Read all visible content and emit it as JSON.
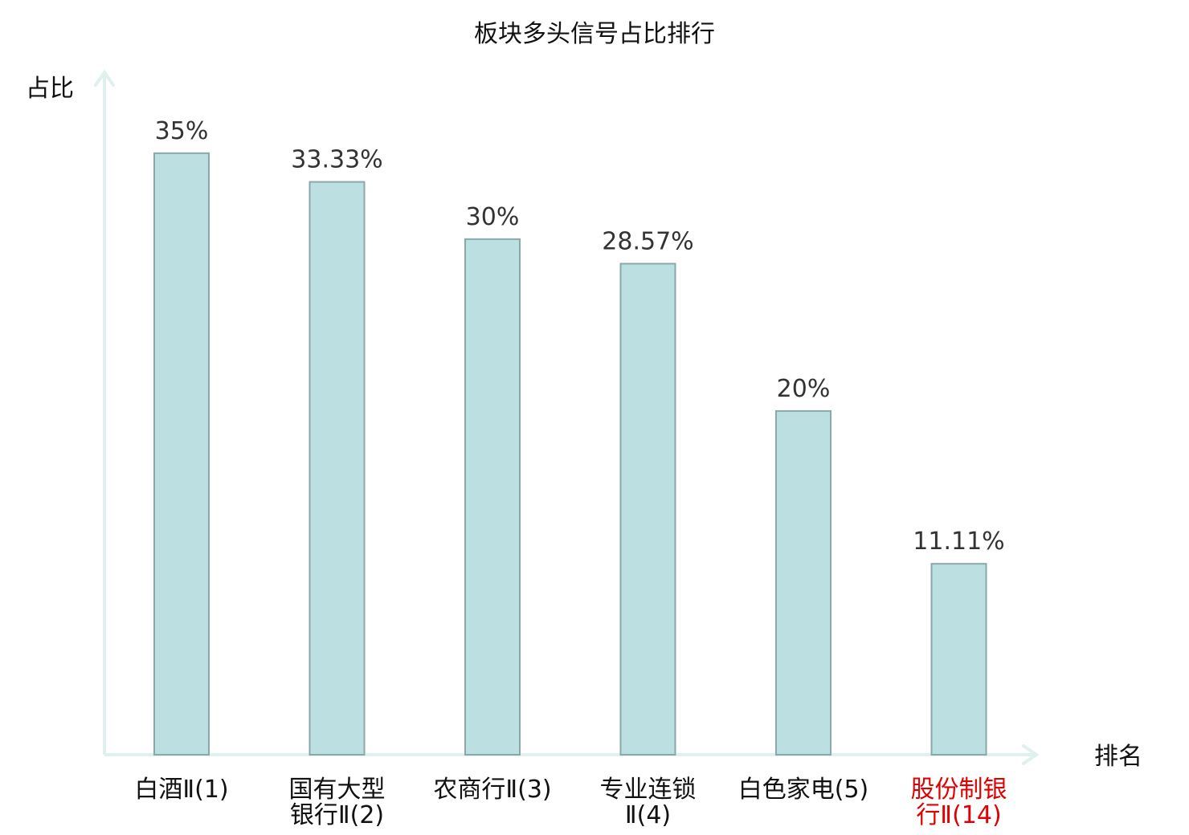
{
  "chart_data": {
    "type": "bar",
    "title": "板块多头信号占比排行",
    "ylabel": "占比",
    "xlabel": "排名",
    "ylim": [
      0,
      37.5
    ],
    "grid": false,
    "categories": [
      [
        "白酒Ⅱ(1)"
      ],
      [
        "国有大型",
        "银行Ⅱ(2)"
      ],
      [
        "农商行Ⅱ(3)"
      ],
      [
        "专业连锁",
        "Ⅱ(4)"
      ],
      [
        "白色家电(5)"
      ],
      [
        "股份制银",
        "行Ⅱ(14)"
      ]
    ],
    "values": [
      35,
      33.33,
      30,
      28.57,
      20,
      11.11
    ],
    "value_labels": [
      "35%",
      "33.33%",
      "30%",
      "28.57%",
      "20%",
      "11.11%"
    ],
    "highlight_index": 5
  },
  "colors": {
    "bar_fill": "#bce0e2",
    "bar_stroke": "#8aa8aa",
    "axis": "#dff0ee",
    "text": "#111111",
    "value_text": "#333333",
    "highlight_text": "#e00000"
  }
}
